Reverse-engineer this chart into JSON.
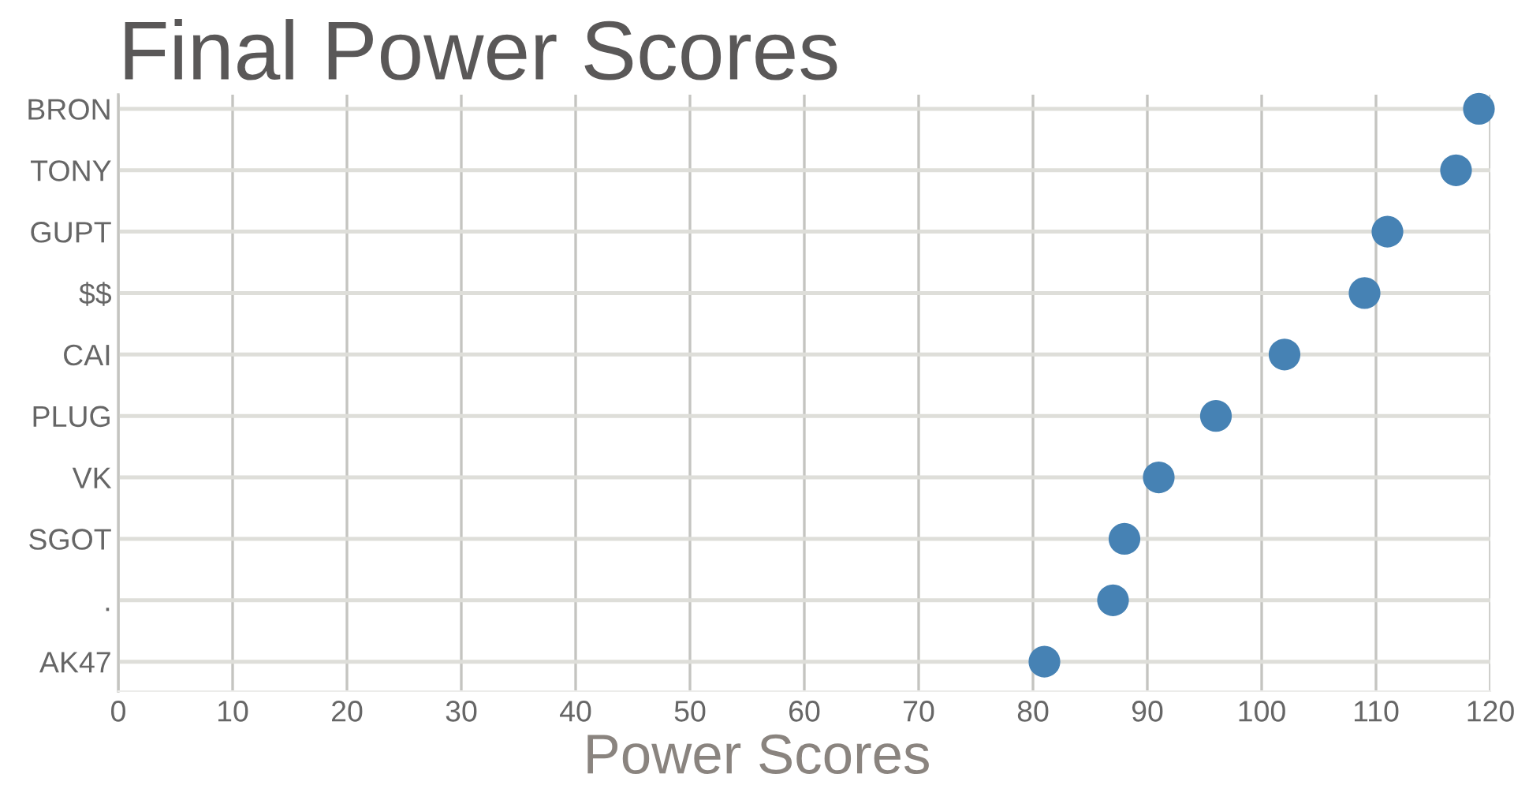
{
  "chart_data": {
    "type": "scatter",
    "orientation": "horizontal",
    "title": "Final Power Scores",
    "xlabel": "Power Scores",
    "categories": [
      "BRON",
      "TONY",
      "GUPT",
      "$$",
      "CAI",
      "PLUG",
      "VK",
      "SGOT",
      ".",
      "AK47"
    ],
    "series": [
      {
        "color": "#4682b4",
        "values": [
          119,
          117,
          111,
          109,
          102,
          96,
          91,
          88,
          87,
          81
        ]
      }
    ],
    "xlim": [
      0,
      120
    ],
    "xticks": [
      0,
      10,
      20,
      30,
      40,
      50,
      60,
      70,
      80,
      90,
      100,
      110,
      120
    ],
    "grid": true,
    "marker": "circle"
  }
}
